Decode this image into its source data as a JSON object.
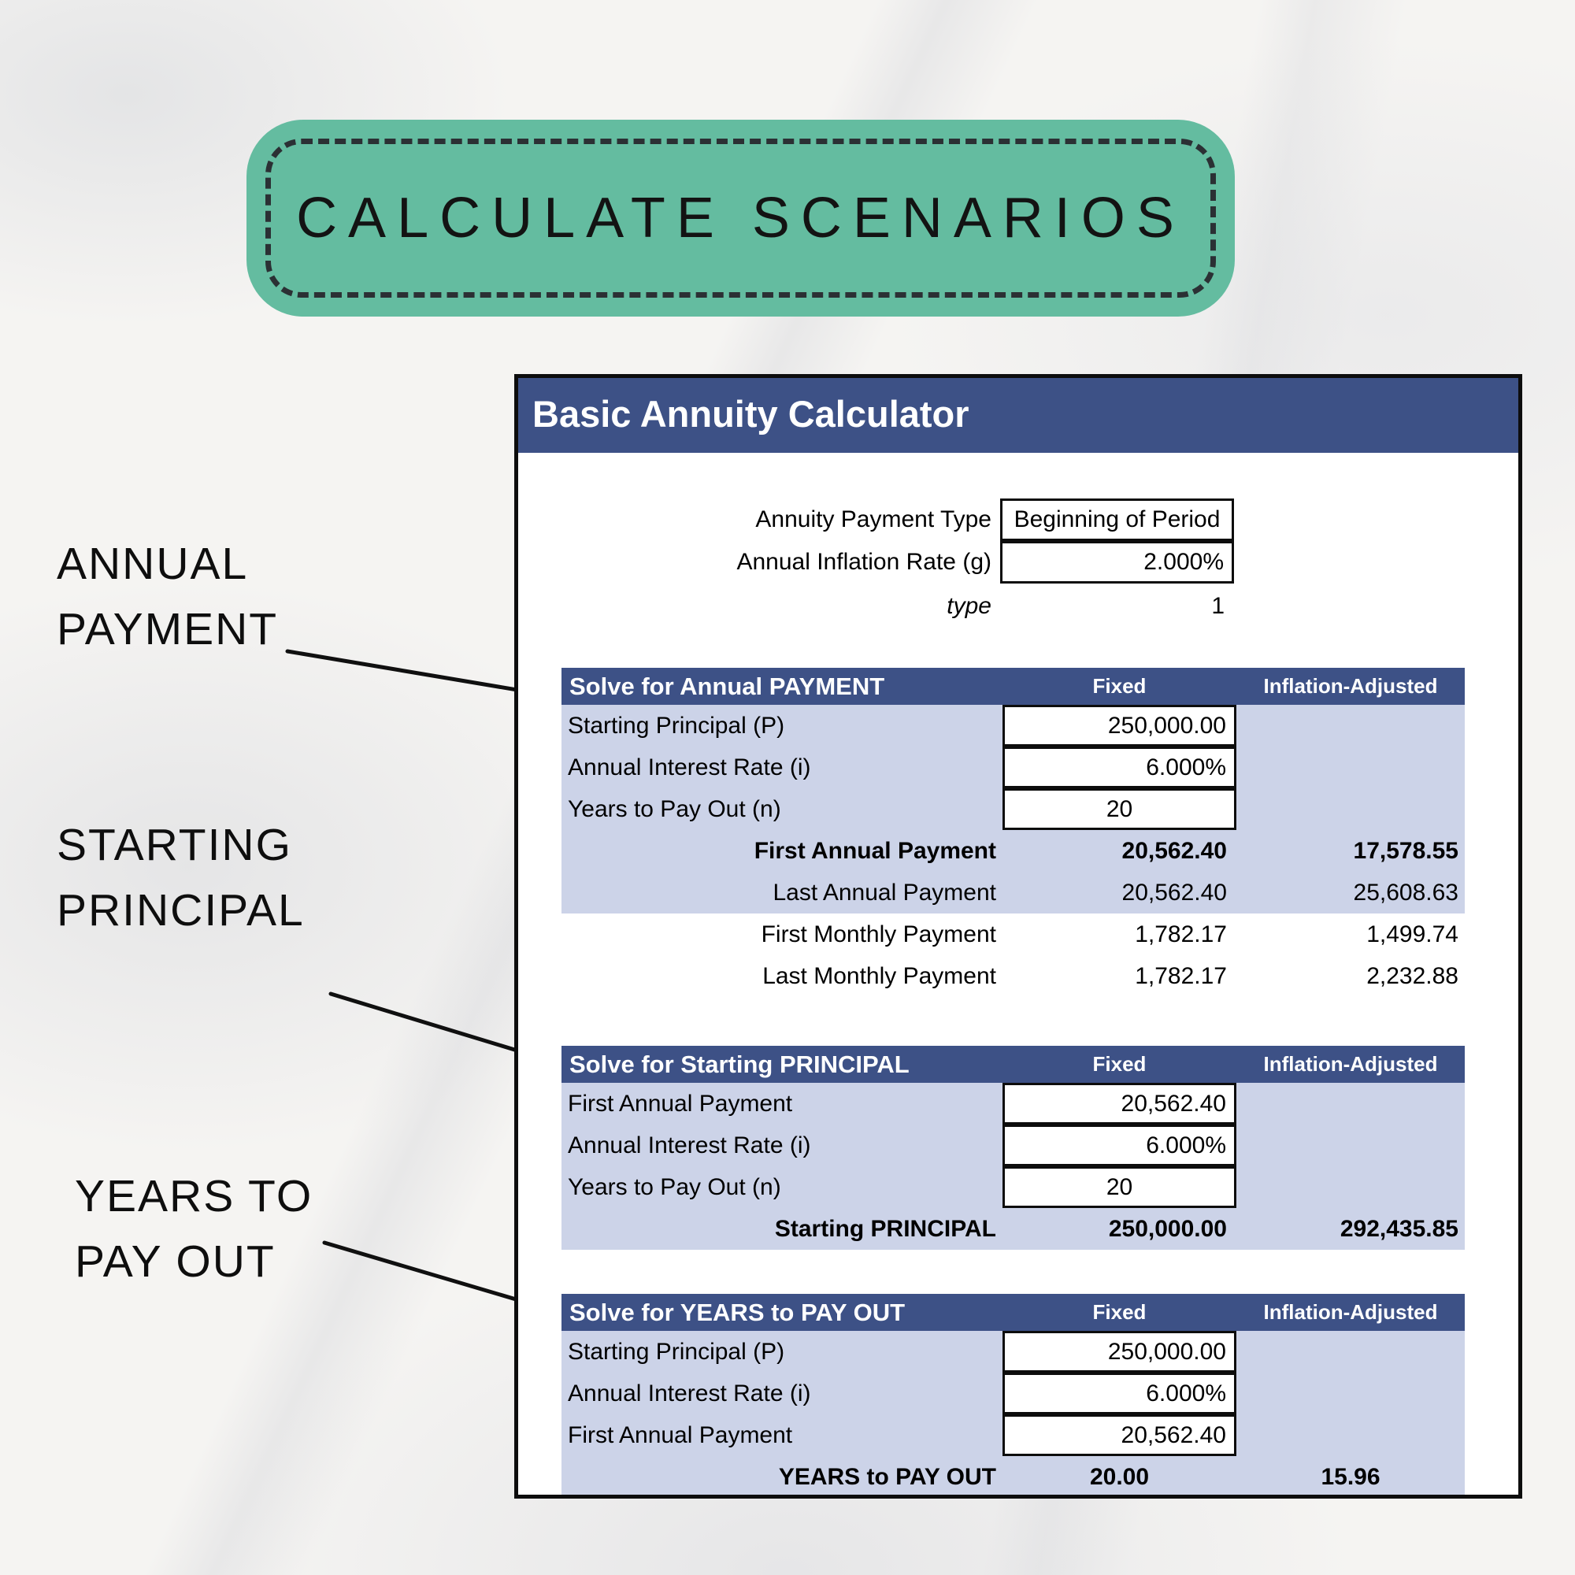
{
  "badge": {
    "title": "CALCULATE SCENARIOS",
    "fill": "#64bca0"
  },
  "side_labels": [
    {
      "id": "annual-payment",
      "text": "ANNUAL\nPAYMENT"
    },
    {
      "id": "starting-principal",
      "text": "STARTING\nPRINCIPAL"
    },
    {
      "id": "years-to-pay-out",
      "text": "YEARS TO\nPAY OUT"
    }
  ],
  "calculator": {
    "title": "Basic Annuity Calculator",
    "header_color": "#3d5186",
    "row_color": "#ccd3e8",
    "top_fields": [
      {
        "label": "Annuity Payment Type",
        "value": "Beginning of Period",
        "boxed": true,
        "align": "center",
        "italic": false
      },
      {
        "label": "Annual Inflation Rate (g)",
        "value": "2.000%",
        "boxed": true,
        "align": "right",
        "italic": false
      },
      {
        "label": "type",
        "value": "1",
        "boxed": false,
        "align": "right",
        "italic": true
      }
    ],
    "col_headers": {
      "fixed": "Fixed",
      "adjusted": "Inflation-Adjusted"
    },
    "sections": [
      {
        "title": "Solve for Annual PAYMENT",
        "inputs": [
          {
            "label": "Starting Principal (P)",
            "value": "250,000.00",
            "align": "right"
          },
          {
            "label": "Annual Interest Rate (i)",
            "value": "6.000%",
            "align": "right"
          },
          {
            "label": "Years to Pay Out (n)",
            "value": "20",
            "align": "center"
          }
        ],
        "results": [
          {
            "label": "First Annual Payment",
            "fixed": "20,562.40",
            "adjusted": "17,578.55",
            "bold": true,
            "shaded": true,
            "center": false
          },
          {
            "label": "Last Annual Payment",
            "fixed": "20,562.40",
            "adjusted": "25,608.63",
            "bold": false,
            "shaded": true,
            "center": false
          },
          {
            "label": "First Monthly Payment",
            "fixed": "1,782.17",
            "adjusted": "1,499.74",
            "bold": false,
            "shaded": false,
            "center": false
          },
          {
            "label": "Last Monthly Payment",
            "fixed": "1,782.17",
            "adjusted": "2,232.88",
            "bold": false,
            "shaded": false,
            "center": false
          }
        ]
      },
      {
        "title": "Solve for Starting PRINCIPAL",
        "inputs": [
          {
            "label": "First Annual Payment",
            "value": "20,562.40",
            "align": "right"
          },
          {
            "label": "Annual Interest Rate (i)",
            "value": "6.000%",
            "align": "right"
          },
          {
            "label": "Years to Pay Out (n)",
            "value": "20",
            "align": "center"
          }
        ],
        "results": [
          {
            "label": "Starting PRINCIPAL",
            "fixed": "250,000.00",
            "adjusted": "292,435.85",
            "bold": true,
            "shaded": true,
            "center": false
          }
        ]
      },
      {
        "title": "Solve for YEARS to PAY OUT",
        "inputs": [
          {
            "label": "Starting Principal (P)",
            "value": "250,000.00",
            "align": "right"
          },
          {
            "label": "Annual Interest Rate (i)",
            "value": "6.000%",
            "align": "right"
          },
          {
            "label": "First Annual Payment",
            "value": "20,562.40",
            "align": "right"
          }
        ],
        "results": [
          {
            "label": "YEARS to PAY OUT",
            "fixed": "20.00",
            "adjusted": "15.96",
            "bold": true,
            "shaded": true,
            "center": true
          }
        ]
      }
    ]
  }
}
